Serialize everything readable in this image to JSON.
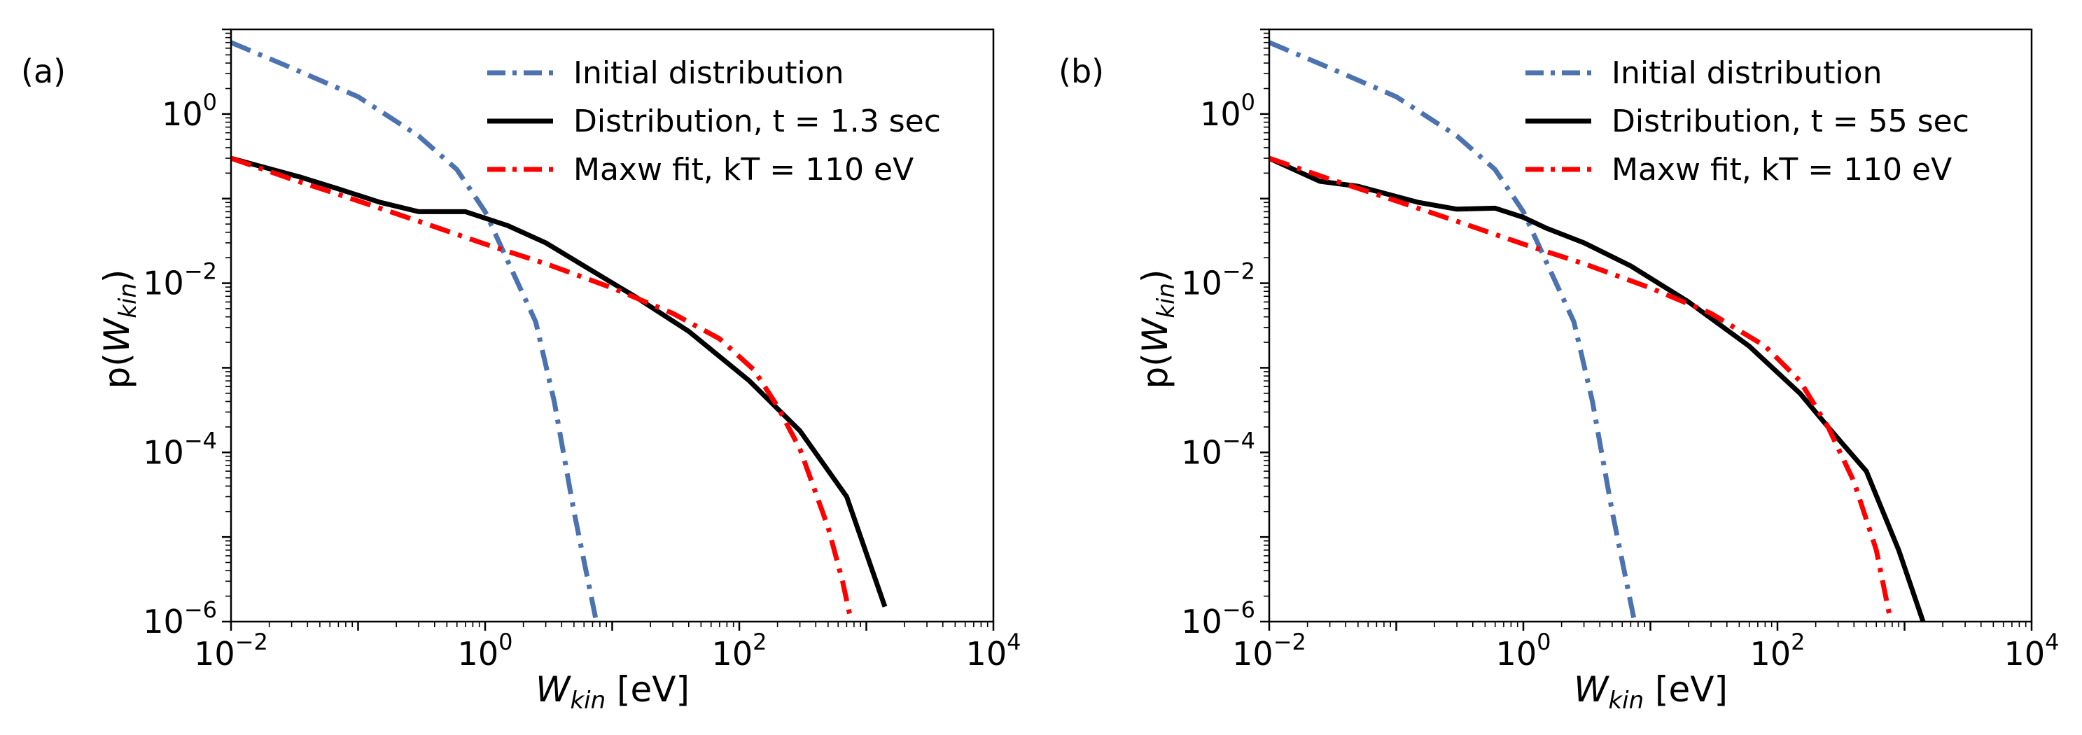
{
  "chart_data": [
    {
      "type": "line",
      "panel_label": "(a)",
      "xlabel": {
        "main": "W",
        "sub": "kin",
        "unit": " [eV]"
      },
      "ylabel": {
        "pre": "p(",
        "main": "W",
        "sub": "kin",
        "post": ")"
      },
      "x_scale": "log",
      "y_scale": "log",
      "xlim": [
        0.01,
        10000
      ],
      "ylim": [
        1e-06,
        10
      ],
      "x_ticks": [
        {
          "value": 0.01,
          "base": "10",
          "exp": "−2"
        },
        {
          "value": 1,
          "base": "10",
          "exp": "0"
        },
        {
          "value": 100,
          "base": "10",
          "exp": "2"
        },
        {
          "value": 10000,
          "base": "10",
          "exp": "4"
        }
      ],
      "y_ticks": [
        {
          "value": 1e-06,
          "base": "10",
          "exp": "−6"
        },
        {
          "value": 0.0001,
          "base": "10",
          "exp": "−4"
        },
        {
          "value": 0.01,
          "base": "10",
          "exp": "−2"
        },
        {
          "value": 1,
          "base": "10",
          "exp": "0"
        }
      ],
      "grid": false,
      "legend_position": "top-right",
      "series": [
        {
          "name": "Initial distribution",
          "color": "#4c72b0",
          "style": "dashdot",
          "x": [
            0.01,
            0.03,
            0.1,
            0.3,
            0.6,
            1,
            1.6,
            2.5,
            3.5,
            5,
            7.5
          ],
          "y": [
            7,
            3.5,
            1.6,
            0.55,
            0.22,
            0.07,
            0.015,
            0.0035,
            0.0004,
            2e-05,
            1e-06
          ]
        },
        {
          "name": "Distribution, t = 1.3 sec",
          "color": "#000000",
          "style": "solid",
          "x": [
            0.01,
            0.035,
            0.07,
            0.15,
            0.3,
            0.7,
            1.5,
            3,
            6,
            15,
            40,
            120,
            300,
            700,
            1400
          ],
          "y": [
            0.3,
            0.18,
            0.13,
            0.09,
            0.07,
            0.07,
            0.048,
            0.03,
            0.016,
            0.007,
            0.0027,
            0.0007,
            0.00018,
            3e-05,
            1.5e-06
          ]
        },
        {
          "name": "Maxw fit, kT = 110 eV",
          "color": "#ff0000",
          "style": "dashdot",
          "x": [
            0.01,
            0.03,
            0.1,
            0.3,
            1,
            3,
            10,
            30,
            70,
            130,
            200,
            300,
            500,
            650,
            760
          ],
          "y": [
            0.3,
            0.17,
            0.094,
            0.054,
            0.029,
            0.017,
            0.0088,
            0.0044,
            0.0022,
            0.00095,
            0.00035,
            0.00011,
            1.3e-05,
            3e-06,
            1e-06
          ]
        }
      ]
    },
    {
      "type": "line",
      "panel_label": "(b)",
      "xlabel": {
        "main": "W",
        "sub": "kin",
        "unit": " [eV]"
      },
      "ylabel": {
        "pre": "p(",
        "main": "W",
        "sub": "kin",
        "post": ")"
      },
      "x_scale": "log",
      "y_scale": "log",
      "xlim": [
        0.01,
        10000
      ],
      "ylim": [
        1e-06,
        10
      ],
      "x_ticks": [
        {
          "value": 0.01,
          "base": "10",
          "exp": "−2"
        },
        {
          "value": 1,
          "base": "10",
          "exp": "0"
        },
        {
          "value": 100,
          "base": "10",
          "exp": "2"
        },
        {
          "value": 10000,
          "base": "10",
          "exp": "4"
        }
      ],
      "y_ticks": [
        {
          "value": 1e-06,
          "base": "10",
          "exp": "−6"
        },
        {
          "value": 0.0001,
          "base": "10",
          "exp": "−4"
        },
        {
          "value": 0.01,
          "base": "10",
          "exp": "−2"
        },
        {
          "value": 1,
          "base": "10",
          "exp": "0"
        }
      ],
      "grid": false,
      "legend_position": "top-right",
      "series": [
        {
          "name": "Initial distribution",
          "color": "#4c72b0",
          "style": "dashdot",
          "x": [
            0.01,
            0.03,
            0.1,
            0.3,
            0.6,
            1,
            1.6,
            2.5,
            3.5,
            5,
            7.5
          ],
          "y": [
            7,
            3.5,
            1.6,
            0.55,
            0.22,
            0.07,
            0.015,
            0.0035,
            0.0004,
            2e-05,
            1e-06
          ]
        },
        {
          "name": "Distribution, t = 55 sec",
          "color": "#000000",
          "style": "solid",
          "x": [
            0.01,
            0.025,
            0.05,
            0.15,
            0.3,
            0.6,
            1,
            1.5,
            3,
            7,
            20,
            60,
            150,
            250,
            500,
            900,
            1400
          ],
          "y": [
            0.3,
            0.16,
            0.14,
            0.09,
            0.075,
            0.077,
            0.06,
            0.045,
            0.03,
            0.016,
            0.006,
            0.0018,
            0.0005,
            0.0002,
            6e-05,
            7e-06,
            1e-06
          ]
        },
        {
          "name": "Maxw fit, kT = 110 eV",
          "color": "#ff0000",
          "style": "dashdot",
          "x": [
            0.01,
            0.03,
            0.1,
            0.3,
            1,
            3,
            10,
            30,
            80,
            150,
            250,
            400,
            600,
            780
          ],
          "y": [
            0.3,
            0.17,
            0.094,
            0.054,
            0.029,
            0.017,
            0.0088,
            0.0044,
            0.0018,
            0.0007,
            0.0002,
            4.5e-05,
            7e-06,
            1e-06
          ]
        }
      ]
    }
  ]
}
